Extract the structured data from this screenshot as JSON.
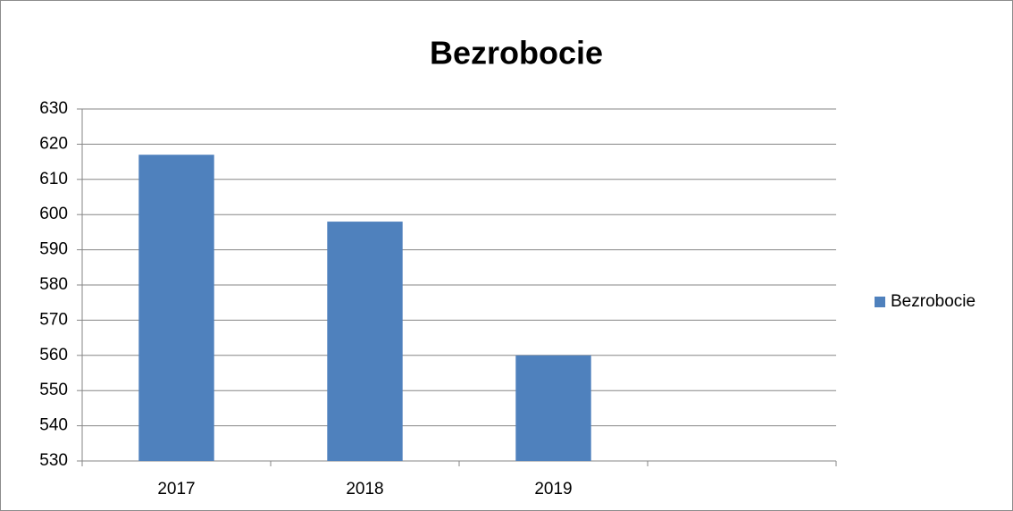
{
  "chart_data": {
    "type": "bar",
    "title": "Bezrobocie",
    "categories": [
      "2017",
      "2018",
      "2019",
      null
    ],
    "series": [
      {
        "name": "Bezrobocie",
        "color": "#4f81bd",
        "values": [
          617,
          598,
          560,
          null
        ]
      }
    ],
    "ylim": [
      530,
      630
    ],
    "yticks": [
      530,
      540,
      550,
      560,
      570,
      580,
      590,
      600,
      610,
      620,
      630
    ],
    "grid": true,
    "legend": "right"
  }
}
